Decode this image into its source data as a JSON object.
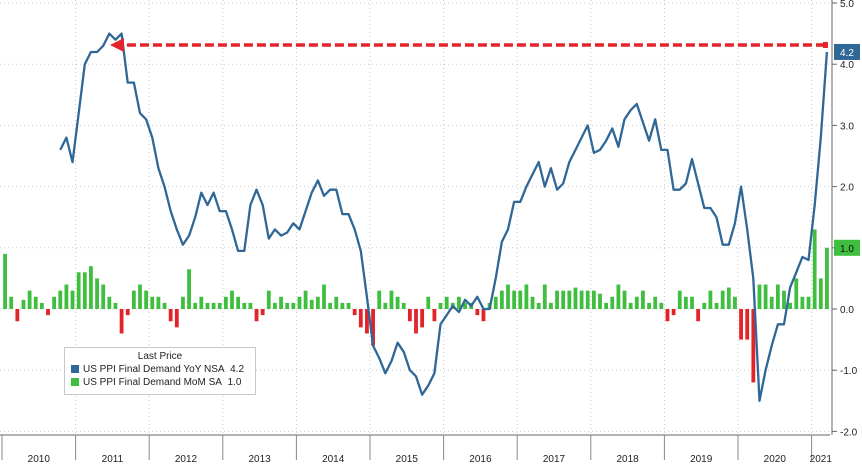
{
  "chart_data": {
    "type": "bar+line",
    "title": "",
    "xlabel": "",
    "ylabel": "",
    "ylim": [
      -2.0,
      5.0
    ],
    "y_ticks": [
      "5.0",
      "4.0",
      "3.0",
      "2.0",
      "1.0",
      "0.0",
      "-1.0",
      "-2.0"
    ],
    "years": [
      "2010",
      "2011",
      "2012",
      "2013",
      "2014",
      "2015",
      "2016",
      "2017",
      "2018",
      "2019",
      "2020",
      "2021"
    ],
    "x_start": "2010-01",
    "grid": true,
    "legend_title": "Last Price",
    "series": [
      {
        "name": "US PPI Final Demand YoY NSA",
        "last_label": "4.2",
        "color": "#2f6796",
        "kind": "line",
        "values": [
          null,
          null,
          null,
          null,
          null,
          null,
          null,
          null,
          null,
          2.6,
          2.8,
          2.4,
          3.2,
          4.0,
          4.2,
          4.2,
          4.3,
          4.5,
          4.4,
          4.5,
          3.7,
          3.7,
          3.2,
          3.1,
          2.8,
          2.3,
          2.0,
          1.6,
          1.3,
          1.05,
          1.2,
          1.5,
          1.9,
          1.7,
          1.9,
          1.6,
          1.6,
          1.3,
          0.95,
          0.95,
          1.7,
          1.95,
          1.7,
          1.15,
          1.3,
          1.2,
          1.25,
          1.4,
          1.3,
          1.6,
          1.9,
          2.1,
          1.85,
          1.95,
          1.95,
          1.55,
          1.55,
          1.3,
          0.95,
          0.2,
          -0.6,
          -0.8,
          -1.05,
          -0.85,
          -0.55,
          -0.7,
          -1.0,
          -1.1,
          -1.4,
          -1.25,
          -1.05,
          -0.25,
          -0.1,
          0.05,
          -0.05,
          0.15,
          0.05,
          0.2,
          0.0,
          0.0,
          0.5,
          1.1,
          1.3,
          1.75,
          1.75,
          2.0,
          2.2,
          2.4,
          2.0,
          2.3,
          1.95,
          2.05,
          2.4,
          2.6,
          2.8,
          3.0,
          2.55,
          2.6,
          2.75,
          2.95,
          2.65,
          3.1,
          3.25,
          3.35,
          3.05,
          2.75,
          3.1,
          2.6,
          2.6,
          1.95,
          1.95,
          2.05,
          2.45,
          2.05,
          1.65,
          1.65,
          1.5,
          1.05,
          1.05,
          1.4,
          2.0,
          1.3,
          0.5,
          -1.5,
          -1.0,
          -0.6,
          -0.25,
          -0.25,
          0.35,
          0.6,
          0.85,
          0.8,
          1.7,
          2.8,
          4.2
        ]
      },
      {
        "name": "US PPI Final Demand MoM SA",
        "last_label": "1.0",
        "color": "#3fbe3f",
        "kind": "bar",
        "values": [
          0.9,
          0.2,
          -0.2,
          0.15,
          0.3,
          0.2,
          0.1,
          -0.1,
          0.2,
          0.3,
          0.4,
          0.3,
          0.6,
          0.6,
          0.7,
          0.5,
          0.4,
          0.2,
          0.1,
          -0.4,
          -0.1,
          0.3,
          0.4,
          0.3,
          0.2,
          0.2,
          0.1,
          -0.2,
          -0.3,
          0.2,
          0.65,
          0.1,
          0.2,
          0.1,
          0.1,
          0.1,
          0.2,
          0.3,
          0.2,
          0.1,
          0.1,
          -0.2,
          -0.1,
          0.3,
          0.1,
          0.2,
          0.1,
          0.1,
          0.2,
          0.3,
          0.15,
          0.2,
          0.4,
          0.1,
          0.2,
          0.1,
          0.1,
          -0.1,
          -0.3,
          -0.4,
          -0.6,
          0.3,
          0.1,
          0.3,
          0.2,
          0.1,
          -0.2,
          -0.4,
          -0.3,
          0.2,
          -0.2,
          0.1,
          0.2,
          0.1,
          0.2,
          0.1,
          0.1,
          -0.1,
          -0.2,
          0.1,
          0.2,
          0.3,
          0.4,
          0.3,
          0.3,
          0.4,
          0.2,
          0.1,
          0.4,
          0.1,
          0.3,
          0.3,
          0.3,
          0.35,
          0.3,
          0.3,
          0.3,
          0.25,
          0.1,
          0.2,
          0.4,
          0.3,
          0.1,
          0.2,
          0.3,
          0.1,
          0.2,
          0.1,
          -0.2,
          -0.1,
          0.3,
          0.2,
          0.2,
          -0.2,
          0.1,
          0.3,
          0.1,
          0.3,
          0.35,
          0.2,
          -0.5,
          -0.5,
          -1.2,
          0.4,
          0.4,
          0.2,
          0.4,
          0.3,
          0.1,
          0.5,
          0.2,
          0.2,
          1.3,
          0.5,
          1.0
        ]
      }
    ],
    "annotation": {
      "type": "arrow",
      "color": "#e3242b",
      "from_value": 4.2,
      "to_year_label": "2011",
      "style": "dashed"
    }
  }
}
